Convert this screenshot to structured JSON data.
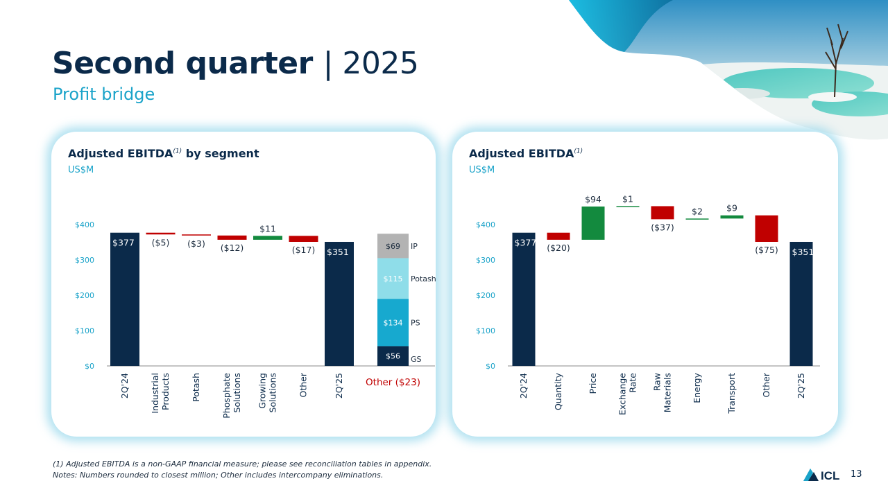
{
  "header": {
    "title_bold": "Second quarter",
    "title_rest": "| 2025",
    "subtitle": "Profit bridge"
  },
  "colors": {
    "navy": "#0b2a4a",
    "red": "#c00000",
    "green": "#138a3e",
    "teal": "#1aa3c9",
    "axis_text": "#1aa3c9",
    "other_label": "#c00000"
  },
  "panels": {
    "left": {
      "title": "Adjusted EBITDA",
      "sup": "(1)",
      "title_suffix": " by segment",
      "unit": "US$M"
    },
    "right": {
      "title": "Adjusted EBITDA",
      "sup": "(1)",
      "unit": "US$M"
    }
  },
  "chart_data": [
    {
      "type": "bar",
      "title": "Adjusted EBITDA(1) by segment",
      "subtitle": "US$M",
      "ylim": [
        0,
        400
      ],
      "y_ticks": [
        0,
        100,
        200,
        300,
        400
      ],
      "y_tick_labels": [
        "$0",
        "$100",
        "$200",
        "$300",
        "$400"
      ],
      "categories": [
        "2Q'24",
        "Industrial Products",
        "Potash",
        "Phosphate Solutions",
        "Growing Solutions",
        "Other",
        "2Q'25",
        "Other ($23)"
      ],
      "steps": [
        {
          "category": "2Q'24",
          "kind": "total",
          "value": 377,
          "label": "$377"
        },
        {
          "category": "Industrial Products",
          "kind": "delta",
          "value": -5,
          "label": "($5)"
        },
        {
          "category": "Potash",
          "kind": "delta",
          "value": -3,
          "label": "($3)"
        },
        {
          "category": "Phosphate Solutions",
          "kind": "delta",
          "value": -12,
          "label": "($12)"
        },
        {
          "category": "Growing Solutions",
          "kind": "delta",
          "value": 11,
          "label": "$11"
        },
        {
          "category": "Other",
          "kind": "delta",
          "value": -17,
          "label": "($17)"
        },
        {
          "category": "2Q'25",
          "kind": "total",
          "value": 351,
          "label": "$351"
        }
      ],
      "stack": {
        "category": "Other ($23)",
        "segments": [
          {
            "name": "GS",
            "value": 56,
            "label": "$56",
            "color": "#0b2a4a"
          },
          {
            "name": "PS",
            "value": 134,
            "label": "$134",
            "color": "#17a9cf"
          },
          {
            "name": "Potash",
            "value": 115,
            "label": "$115",
            "color": "#8fdde9"
          },
          {
            "name": "IP",
            "value": 69,
            "label": "$69",
            "color": "#b3b3b3"
          }
        ]
      }
    },
    {
      "type": "bar",
      "title": "Adjusted EBITDA(1)",
      "subtitle": "US$M",
      "ylim": [
        0,
        400
      ],
      "y_ticks": [
        0,
        100,
        200,
        300,
        400
      ],
      "y_tick_labels": [
        "$0",
        "$100",
        "$200",
        "$300",
        "$400"
      ],
      "categories": [
        "2Q'24",
        "Quantity",
        "Price",
        "Exchange Rate",
        "Raw Materials",
        "Energy",
        "Transport",
        "Other",
        "2Q'25"
      ],
      "steps": [
        {
          "category": "2Q'24",
          "kind": "total",
          "value": 377,
          "label": "$377"
        },
        {
          "category": "Quantity",
          "kind": "delta",
          "value": -20,
          "label": "($20)"
        },
        {
          "category": "Price",
          "kind": "delta",
          "value": 94,
          "label": "$94"
        },
        {
          "category": "Exchange Rate",
          "kind": "delta",
          "value": 1,
          "label": "$1"
        },
        {
          "category": "Raw Materials",
          "kind": "delta",
          "value": -37,
          "label": "($37)"
        },
        {
          "category": "Energy",
          "kind": "delta",
          "value": 2,
          "label": "$2"
        },
        {
          "category": "Transport",
          "kind": "delta",
          "value": 9,
          "label": "$9"
        },
        {
          "category": "Other",
          "kind": "delta",
          "value": -75,
          "label": "($75)"
        },
        {
          "category": "2Q'25",
          "kind": "total",
          "value": 351,
          "label": "$351"
        }
      ]
    }
  ],
  "footnotes": [
    "(1) Adjusted EBITDA is a non-GAAP financial measure; please see reconciliation tables in appendix.",
    "Notes: Numbers rounded to closest million; Other includes intercompany eliminations."
  ],
  "logo": {
    "text": "ICL",
    "icon": "icl-logo-icon"
  },
  "page_number": "13"
}
